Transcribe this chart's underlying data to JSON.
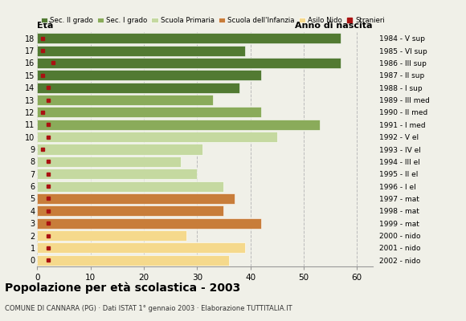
{
  "ages": [
    18,
    17,
    16,
    15,
    14,
    13,
    12,
    11,
    10,
    9,
    8,
    7,
    6,
    5,
    4,
    3,
    2,
    1,
    0
  ],
  "years_by_age": {
    "18": "1984 - V sup",
    "17": "1985 - VI sup",
    "16": "1986 - III sup",
    "15": "1987 - II sup",
    "14": "1988 - I sup",
    "13": "1989 - III med",
    "12": "1990 - II med",
    "11": "1991 - I med",
    "10": "1992 - V el",
    "9": "1993 - IV el",
    "8": "1994 - III el",
    "7": "1995 - II el",
    "6": "1996 - I el",
    "5": "1997 - mat",
    "4": "1998 - mat",
    "3": "1999 - mat",
    "2": "2000 - nido",
    "1": "2001 - nido",
    "0": "2002 - nido"
  },
  "bar_values": {
    "18": 57,
    "17": 39,
    "16": 57,
    "15": 42,
    "14": 38,
    "13": 33,
    "12": 42,
    "11": 53,
    "10": 45,
    "9": 31,
    "8": 27,
    "7": 30,
    "6": 35,
    "5": 37,
    "4": 35,
    "3": 42,
    "2": 28,
    "1": 39,
    "0": 36
  },
  "stranieri_by_age": {
    "18": 1,
    "17": 1,
    "16": 3,
    "15": 1,
    "14": 2,
    "13": 2,
    "12": 1,
    "11": 2,
    "10": 2,
    "9": 1,
    "8": 2,
    "7": 2,
    "6": 2,
    "5": 2,
    "4": 2,
    "3": 2,
    "2": 2,
    "1": 2,
    "0": 2
  },
  "bar_colors_by_age": {
    "18": "#527a32",
    "17": "#527a32",
    "16": "#527a32",
    "15": "#527a32",
    "14": "#527a32",
    "13": "#8aab5a",
    "12": "#8aab5a",
    "11": "#8aab5a",
    "10": "#c5d9a0",
    "9": "#c5d9a0",
    "8": "#c5d9a0",
    "7": "#c5d9a0",
    "6": "#c5d9a0",
    "5": "#c87d3a",
    "4": "#c87d3a",
    "3": "#c87d3a",
    "2": "#f5d98c",
    "1": "#f5d98c",
    "0": "#f5d98c"
  },
  "stranieri_color": "#aa1111",
  "legend_labels": [
    "Sec. II grado",
    "Sec. I grado",
    "Scuola Primaria",
    "Scuola dell'Infanzia",
    "Asilo Nido",
    "Stranieri"
  ],
  "legend_colors": [
    "#527a32",
    "#8aab5a",
    "#c5d9a0",
    "#c87d3a",
    "#f5d98c",
    "#aa1111"
  ],
  "xlabel_vals": [
    0,
    10,
    20,
    30,
    40,
    50,
    60
  ],
  "xlim": [
    0,
    63
  ],
  "title": "Popolazione per età scolastica - 2003",
  "subtitle": "COMUNE DI CANNARA (PG) · Dati ISTAT 1° gennaio 2003 · Elaborazione TUTTITALIA.IT",
  "ylabel_eta": "Età",
  "ylabel_anno": "Anno di nascita",
  "background_color": "#f0f0e8",
  "grid_color": "#bbbbbb",
  "bar_height": 0.85
}
